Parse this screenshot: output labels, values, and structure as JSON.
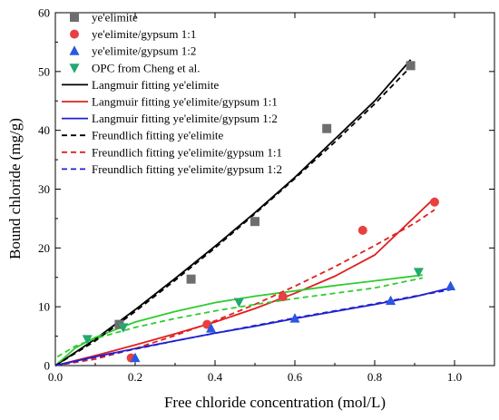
{
  "chart_data": {
    "type": "scatter",
    "title": "",
    "xlabel": "Free chloride concentration (mol/L)",
    "ylabel": "Bound chloride (mg/g)",
    "xlim": [
      0,
      1.1
    ],
    "ylim": [
      0,
      60
    ],
    "x_ticks": [
      "0.0",
      "0.2",
      "0.4",
      "0.6",
      "0.8",
      "1.0"
    ],
    "y_ticks": [
      "0",
      "10",
      "20",
      "30",
      "40",
      "50",
      "60"
    ],
    "legend_position": "top-left",
    "grid": false,
    "series": [
      {
        "name": "ye'elimite",
        "kind": "points",
        "marker": "square",
        "color": "#6e6e6e",
        "x": [
          0.16,
          0.34,
          0.5,
          0.68,
          0.89
        ],
        "y": [
          7.0,
          14.7,
          24.5,
          40.3,
          51.0
        ]
      },
      {
        "name": "ye'elimite/gypsum 1:1",
        "kind": "points",
        "marker": "circle",
        "color": "#e84040",
        "x": [
          0.19,
          0.38,
          0.57,
          0.77,
          0.95
        ],
        "y": [
          1.3,
          7.0,
          11.7,
          23.0,
          27.8
        ]
      },
      {
        "name": "ye'elimite/gypsum 1:2",
        "kind": "points",
        "marker": "triangle-up",
        "color": "#2a57e0",
        "x": [
          0.2,
          0.39,
          0.6,
          0.84,
          0.99
        ],
        "y": [
          1.3,
          6.3,
          8.0,
          11.0,
          13.5
        ]
      },
      {
        "name": "OPC from Cheng et al.",
        "kind": "points",
        "marker": "triangle-down",
        "color": "#22a870",
        "x": [
          0.08,
          0.17,
          0.46,
          0.91
        ],
        "y": [
          4.5,
          6.5,
          10.8,
          15.9
        ]
      },
      {
        "name": "Langmuir fitting  ye'elimite",
        "kind": "line",
        "dash": false,
        "color": "#000000",
        "x": [
          0.0,
          0.1,
          0.2,
          0.3,
          0.4,
          0.5,
          0.6,
          0.7,
          0.8,
          0.89
        ],
        "y": [
          0.0,
          4.5,
          9.5,
          14.8,
          20.3,
          26.0,
          32.0,
          38.5,
          45.0,
          52.0
        ]
      },
      {
        "name": "Langmuir fitting  ye'elimite/gypsum 1:1",
        "kind": "line",
        "dash": false,
        "color": "#e02020",
        "x": [
          0.0,
          0.1,
          0.2,
          0.3,
          0.4,
          0.5,
          0.6,
          0.7,
          0.8,
          0.95
        ],
        "y": [
          0.0,
          1.7,
          3.5,
          5.4,
          7.4,
          9.7,
          12.3,
          15.2,
          18.8,
          28.5
        ]
      },
      {
        "name": "Langmuir fitting  ye'elimite/gypsum 1:2",
        "kind": "line",
        "dash": false,
        "color": "#2020d0",
        "x": [
          0.0,
          0.1,
          0.2,
          0.3,
          0.4,
          0.5,
          0.6,
          0.7,
          0.8,
          0.9,
          0.99
        ],
        "y": [
          0.0,
          1.5,
          2.9,
          4.2,
          5.5,
          6.7,
          8.0,
          9.2,
          10.4,
          11.7,
          13.2
        ]
      },
      {
        "name": "OPC Langmuir fitting",
        "kind": "line",
        "dash": false,
        "color": "#2fcc2f",
        "legend": false,
        "x": [
          0.0,
          0.05,
          0.1,
          0.2,
          0.3,
          0.4,
          0.5,
          0.6,
          0.7,
          0.8,
          0.92
        ],
        "y": [
          0.0,
          3.0,
          4.8,
          7.4,
          9.2,
          10.7,
          11.8,
          12.7,
          13.6,
          14.4,
          15.4
        ]
      },
      {
        "name": "Freundlich fitting  ye'elimite",
        "kind": "line",
        "dash": true,
        "color": "#000000",
        "x": [
          0.0,
          0.1,
          0.2,
          0.3,
          0.4,
          0.5,
          0.6,
          0.7,
          0.8,
          0.9
        ],
        "y": [
          0.0,
          4.2,
          9.2,
          14.5,
          20.0,
          25.8,
          31.8,
          38.0,
          44.5,
          51.5
        ]
      },
      {
        "name": "Freundlich fitting  ye'elimite/gypsum 1:1",
        "kind": "line",
        "dash": true,
        "color": "#e02020",
        "x": [
          0.0,
          0.1,
          0.2,
          0.3,
          0.4,
          0.5,
          0.6,
          0.7,
          0.8,
          0.9,
          0.95
        ],
        "y": [
          0.0,
          1.1,
          2.9,
          5.1,
          7.6,
          10.4,
          13.5,
          16.8,
          20.4,
          24.2,
          26.5
        ]
      },
      {
        "name": "Freundlich fitting  ye'elimite/gypsum 1:2",
        "kind": "line",
        "dash": true,
        "color": "#2020d0",
        "x": [
          0.0,
          0.1,
          0.2,
          0.3,
          0.4,
          0.5,
          0.6,
          0.7,
          0.8,
          0.9,
          0.99
        ],
        "y": [
          0.0,
          1.4,
          2.8,
          4.2,
          5.5,
          6.8,
          8.1,
          9.3,
          10.5,
          11.8,
          12.9
        ]
      },
      {
        "name": "OPC Freundlich fitting",
        "kind": "line",
        "dash": true,
        "color": "#2fcc2f",
        "legend": false,
        "x": [
          0.005,
          0.05,
          0.1,
          0.2,
          0.3,
          0.4,
          0.5,
          0.6,
          0.7,
          0.8,
          0.92
        ],
        "y": [
          1.5,
          3.3,
          4.6,
          6.5,
          8.0,
          9.3,
          10.4,
          11.4,
          12.3,
          13.2,
          14.9
        ]
      }
    ]
  }
}
